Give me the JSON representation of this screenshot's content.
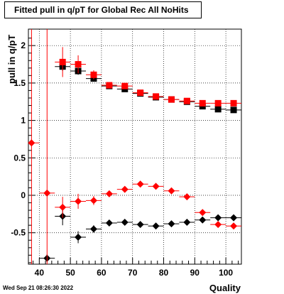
{
  "title": "Fitted pull in q/pT for Global Rec All NoHits",
  "timestamp": "Wed Sep 21 08:26:30 2022",
  "chart_data": {
    "type": "scatter",
    "title": "Fitted pull in q/pT for Global Rec All NoHits",
    "xlabel": "Quality",
    "ylabel": "pull in q/pT",
    "xlim": [
      36.5,
      105
    ],
    "ylim": [
      -0.92,
      2.22
    ],
    "xticks": [
      40,
      50,
      60,
      70,
      80,
      90,
      100
    ],
    "yticks": [
      -0.5,
      0,
      0.5,
      1,
      1.5,
      2
    ],
    "ytick_labels": [
      "-0.5",
      "0",
      "0.5",
      "1",
      "1.5",
      "2"
    ],
    "grid": true,
    "series": [
      {
        "marker": "square",
        "color": "#000000",
        "x": [
          47.5,
          52.5,
          57.5,
          62.5,
          67.5,
          72.5,
          77.5,
          82.5,
          87.5,
          92.5,
          97.5,
          102.5
        ],
        "y": [
          1.72,
          1.66,
          1.56,
          1.46,
          1.42,
          1.36,
          1.31,
          1.28,
          1.25,
          1.19,
          1.15,
          1.14
        ],
        "yerr": [
          0.06,
          0.05,
          0.04,
          0.03,
          0.03,
          0.02,
          0.02,
          0.02,
          0.02,
          0.02,
          0.02,
          0.02
        ]
      },
      {
        "marker": "square",
        "color": "#ff0000",
        "x": [
          47.5,
          52.5,
          57.5,
          62.5,
          67.5,
          72.5,
          77.5,
          82.5,
          87.5,
          92.5,
          97.5,
          102.5
        ],
        "y": [
          1.78,
          1.75,
          1.61,
          1.47,
          1.46,
          1.37,
          1.32,
          1.28,
          1.26,
          1.23,
          1.23,
          1.23
        ],
        "yerr": [
          0.2,
          0.12,
          0.06,
          0.04,
          0.04,
          0.03,
          0.02,
          0.02,
          0.02,
          0.02,
          0.02,
          0.02
        ]
      },
      {
        "marker": "diamond",
        "color": "#000000",
        "x": [
          42.5,
          47.5,
          52.5,
          57.5,
          62.5,
          67.5,
          72.5,
          77.5,
          82.5,
          87.5,
          92.5,
          97.5,
          102.5
        ],
        "y": [
          -0.84,
          -0.28,
          -0.56,
          -0.45,
          -0.37,
          -0.36,
          -0.39,
          -0.41,
          -0.38,
          -0.36,
          -0.33,
          -0.3,
          -0.3
        ],
        "yerr": [
          0.05,
          0.12,
          0.08,
          0.05,
          0.03,
          0.03,
          0.02,
          0.02,
          0.02,
          0.02,
          0.02,
          0.02,
          0.02
        ]
      },
      {
        "marker": "diamond",
        "color": "#ff0000",
        "x": [
          37.5,
          42.5,
          47.5,
          52.5,
          57.5,
          62.5,
          67.5,
          72.5,
          77.5,
          82.5,
          87.5,
          92.5,
          97.5,
          102.5
        ],
        "y": [
          0.7,
          0.03,
          -0.16,
          -0.08,
          -0.07,
          0.02,
          0.08,
          0.15,
          0.12,
          0.06,
          -0.02,
          -0.23,
          -0.39,
          -0.41
        ],
        "yerr": [
          3.2,
          3.2,
          0.14,
          0.1,
          0.06,
          0.04,
          0.03,
          0.02,
          0.02,
          0.02,
          0.02,
          0.02,
          0.02,
          0.02
        ]
      }
    ]
  }
}
